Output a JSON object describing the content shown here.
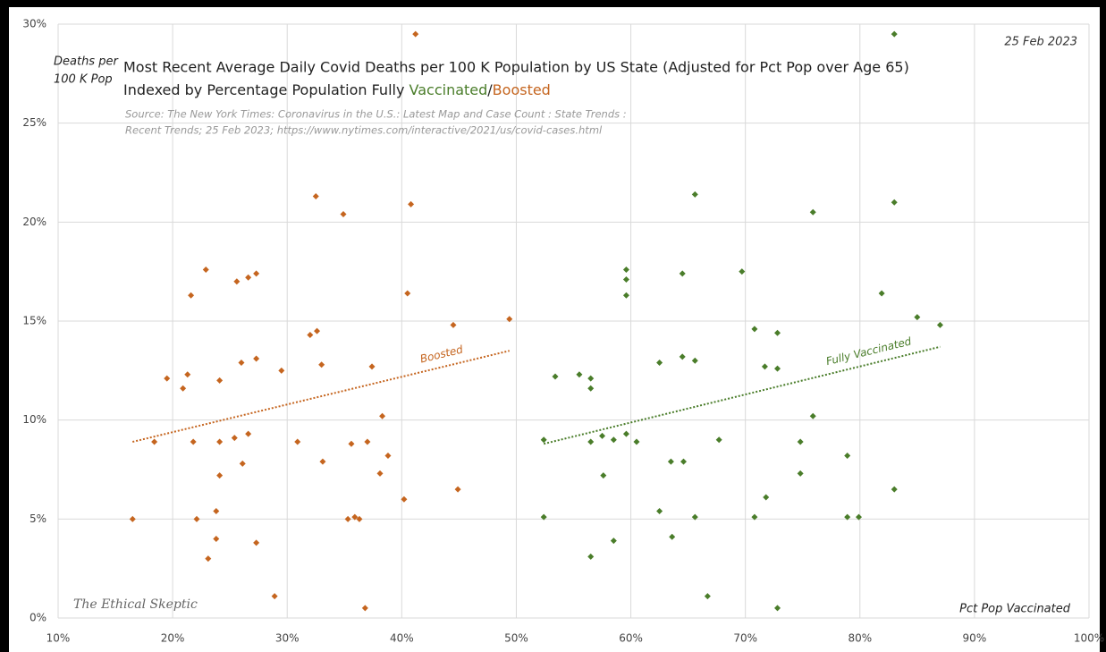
{
  "chart_data": {
    "type": "scatter",
    "title_lines": [
      "Most Recent Average Daily Covid Deaths per 100 K Population by US State (Adjusted for Pct Pop over Age 65)"
    ],
    "title_line2_parts": [
      "Indexed by Percentage Population Fully ",
      "Vaccinated",
      "/",
      "Boosted"
    ],
    "source_lines": [
      "Source:  The New York Times: Coronavirus in the U.S.: Latest Map and Case Count : State Trends :",
      "Recent Trends; 25 Feb 2023; https://www.nytimes.com/interactive/2021/us/covid-cases.html"
    ],
    "date": "25 Feb 2023",
    "y_label_lines": [
      "Deaths per",
      "100 K Pop"
    ],
    "x_label": "Pct Pop Vaccinated",
    "watermark": "The Ethical Skeptic",
    "xlim": [
      10,
      100
    ],
    "ylim": [
      0,
      30
    ],
    "xticks": [
      {
        "value": 10,
        "label": "10%"
      },
      {
        "value": 20,
        "label": "20%"
      },
      {
        "value": 30,
        "label": "30%"
      },
      {
        "value": 40,
        "label": "40%"
      },
      {
        "value": 50,
        "label": "50%"
      },
      {
        "value": 60,
        "label": "60%"
      },
      {
        "value": 70,
        "label": "70%"
      },
      {
        "value": 80,
        "label": "80%"
      },
      {
        "value": 90,
        "label": "90%"
      },
      {
        "value": 100,
        "label": "100%"
      }
    ],
    "yticks": [
      {
        "value": 0,
        "label": "0%"
      },
      {
        "value": 5,
        "label": "5%"
      },
      {
        "value": 10,
        "label": "10%"
      },
      {
        "value": 15,
        "label": "15%"
      },
      {
        "value": 20,
        "label": "20%"
      },
      {
        "value": 25,
        "label": "25%"
      },
      {
        "value": 30,
        "label": "30%"
      }
    ],
    "grid": true,
    "series": [
      {
        "color": "#c5651f",
        "x": [
          16.5,
          18.4,
          19.5,
          20.9,
          21.3,
          21.6,
          21.8,
          22.1,
          22.9,
          23.1,
          23.8,
          23.8,
          24.1,
          24.1,
          24.1,
          25.4,
          25.6,
          26.0,
          26.1,
          26.6,
          26.6,
          27.3,
          27.3,
          27.3,
          28.9,
          29.5,
          30.9,
          32.0,
          32.5,
          32.6,
          33.0,
          33.1,
          34.9,
          35.3,
          35.6,
          35.9,
          36.3,
          36.8,
          37.0,
          37.4,
          38.1,
          38.3,
          38.8,
          40.2,
          40.5,
          40.8,
          41.2,
          44.5,
          44.9,
          49.4
        ],
        "values": [
          5.0,
          8.9,
          12.1,
          11.6,
          12.3,
          16.3,
          8.9,
          5.0,
          17.6,
          3.0,
          5.4,
          4.0,
          7.2,
          12.0,
          8.9,
          9.1,
          17.0,
          12.9,
          7.8,
          17.2,
          9.3,
          17.4,
          13.1,
          3.8,
          1.1,
          12.5,
          8.9,
          14.3,
          21.3,
          14.5,
          12.8,
          7.9,
          20.4,
          5.0,
          8.8,
          5.1,
          5.0,
          0.5,
          8.9,
          12.7,
          7.3,
          10.2,
          8.2,
          6.0,
          16.4,
          20.9,
          29.5,
          14.8,
          6.5,
          15.1
        ]
      },
      {
        "color": "#4a7d2a",
        "x": [
          52.4,
          52.4,
          53.4,
          55.5,
          56.5,
          56.5,
          56.5,
          56.5,
          57.5,
          57.6,
          58.5,
          58.5,
          59.6,
          59.6,
          59.6,
          59.6,
          60.5,
          62.5,
          62.5,
          63.5,
          63.6,
          64.5,
          64.5,
          64.6,
          65.6,
          65.6,
          65.6,
          66.7,
          67.7,
          69.7,
          70.8,
          70.8,
          71.7,
          71.8,
          72.8,
          72.8,
          72.8,
          74.8,
          74.8,
          75.9,
          75.9,
          78.9,
          78.9,
          79.9,
          81.9,
          83.0,
          83.0,
          83.0,
          85.0,
          87.0
        ],
        "values": [
          9.0,
          5.1,
          12.2,
          12.3,
          12.1,
          11.6,
          8.9,
          3.1,
          9.2,
          7.2,
          9.0,
          3.9,
          17.6,
          17.1,
          16.3,
          9.3,
          8.9,
          12.9,
          5.4,
          7.9,
          4.1,
          17.4,
          13.2,
          7.9,
          21.4,
          13.0,
          5.1,
          1.1,
          9.0,
          17.5,
          14.6,
          5.1,
          12.7,
          6.1,
          14.4,
          12.6,
          0.5,
          8.9,
          7.3,
          20.5,
          10.2,
          8.2,
          5.1,
          5.1,
          16.4,
          29.5,
          21.0,
          6.5,
          15.2,
          14.8
        ]
      }
    ],
    "trendlines": [
      {
        "name": "Boosted",
        "color": "#c5651f",
        "x": [
          16.5,
          49.4
        ],
        "y": [
          8.9,
          13.5
        ]
      },
      {
        "name": "Fully Vaccinated",
        "color": "#4a7d2a",
        "x": [
          52.4,
          87.0
        ],
        "y": [
          8.8,
          13.7
        ]
      }
    ]
  }
}
